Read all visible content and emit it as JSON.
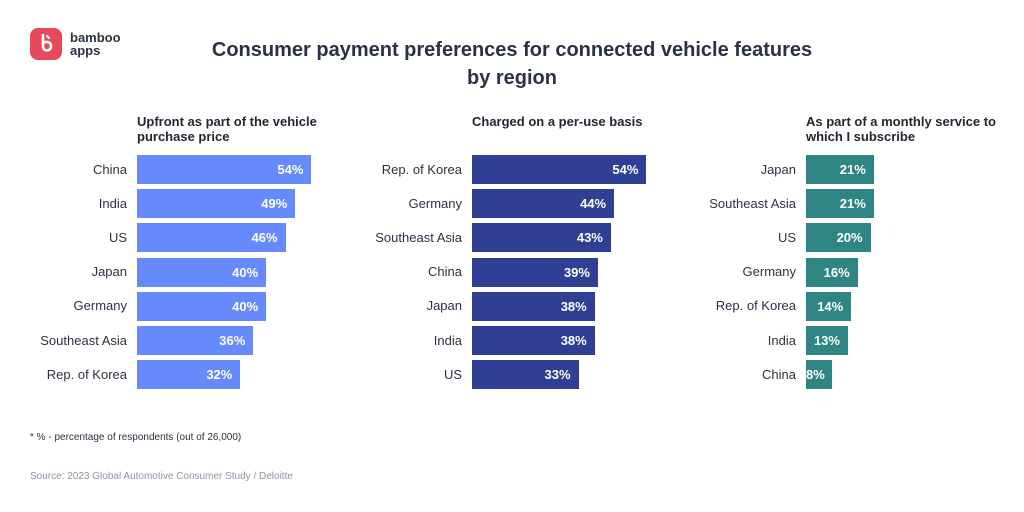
{
  "brand": {
    "line1": "bamboo",
    "line2": "apps",
    "color": "#e8485b"
  },
  "title": "Consumer payment preferences for connected vehicle features by region",
  "footnote": "* % - percentage of respondents (out of 26,000)",
  "source": "Source: 2023 Global Automotive Consumer Study / Deloitte",
  "chart_data": [
    {
      "type": "bar",
      "orientation": "horizontal",
      "title": "Upfront as part of the vehicle purchase price",
      "color": "#6689fb",
      "categories": [
        "China",
        "India",
        "US",
        "Japan",
        "Germany",
        "Southeast Asia",
        "Rep. of Korea"
      ],
      "values": [
        54,
        49,
        46,
        40,
        40,
        36,
        32
      ],
      "value_labels": [
        "54%",
        "49%",
        "46%",
        "40%",
        "40%",
        "36%",
        "32%"
      ]
    },
    {
      "type": "bar",
      "orientation": "horizontal",
      "title": "Charged on a per-use basis",
      "color": "#2f3f93",
      "categories": [
        "Rep. of Korea",
        "Germany",
        "Southeast Asia",
        "China",
        "Japan",
        "India",
        "US"
      ],
      "values": [
        54,
        44,
        43,
        39,
        38,
        38,
        33
      ],
      "value_labels": [
        "54%",
        "44%",
        "43%",
        "39%",
        "38%",
        "38%",
        "33%"
      ]
    },
    {
      "type": "bar",
      "orientation": "horizontal",
      "title": "As part of a monthly service to which I subscribe",
      "color": "#2f8583",
      "categories": [
        "Japan",
        "Southeast Asia",
        "US",
        "Germany",
        "Rep. of Korea",
        "India",
        "China"
      ],
      "values": [
        21,
        21,
        20,
        16,
        14,
        13,
        8
      ],
      "value_labels": [
        "21%",
        "21%",
        "20%",
        "16%",
        "14%",
        "13%",
        "8%"
      ]
    }
  ]
}
